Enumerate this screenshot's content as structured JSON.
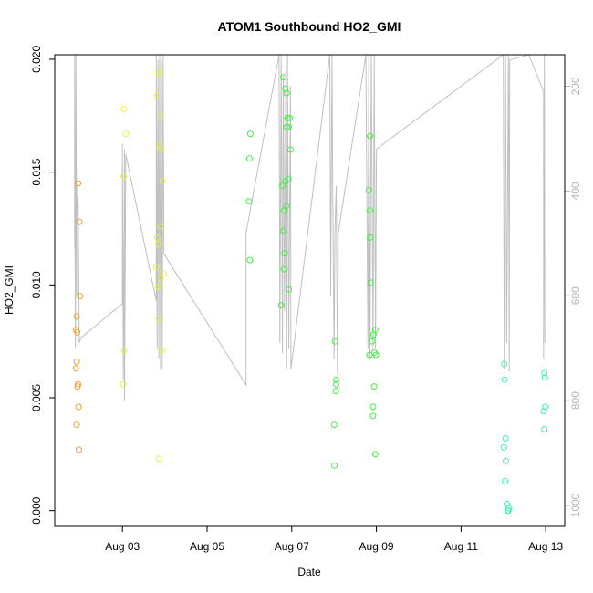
{
  "chart_data": {
    "type": "scatter",
    "title": "ATOM1 Southbound HO2_GMI",
    "xlabel": "Date",
    "ylabel": "HO2_GMI",
    "x_ticks": [
      "Aug 03",
      "Aug 05",
      "Aug 07",
      "Aug 09",
      "Aug 11",
      "Aug 13"
    ],
    "x_tick_days": [
      3,
      5,
      7,
      9,
      11,
      13
    ],
    "xlim": [
      1.4,
      13.45
    ],
    "ylim": [
      -0.0007,
      0.0202
    ],
    "y_ticks": [
      "0.000",
      "0.005",
      "0.010",
      "0.015",
      "0.020"
    ],
    "y_tick_values": [
      0,
      0.005,
      0.01,
      0.015,
      0.02
    ],
    "right_axis": {
      "label": "",
      "lim": [
        1040,
        140
      ],
      "ticks": [
        "200",
        "400",
        "600",
        "800",
        "1000"
      ],
      "tick_values": [
        200,
        400,
        600,
        800,
        1000
      ],
      "color": "#b4b4b4"
    },
    "colors": {
      "points_early": "#f0a030",
      "points_mid": "#e8f040",
      "points_green": "#40f040",
      "points_late": "#40f0b0",
      "trace": "#c0c0c0"
    },
    "series": [
      {
        "color": "#f0a030",
        "points": [
          [
            1.95,
            0.0145
          ],
          [
            1.98,
            0.0128
          ],
          [
            2.0,
            0.0095
          ],
          [
            1.92,
            0.0086
          ],
          [
            1.9,
            0.008
          ],
          [
            1.93,
            0.0079
          ],
          [
            1.92,
            0.0066
          ],
          [
            1.9,
            0.0063
          ],
          [
            1.95,
            0.0056
          ],
          [
            1.94,
            0.0055
          ],
          [
            1.96,
            0.0046
          ],
          [
            1.92,
            0.0038
          ],
          [
            1.97,
            0.0027
          ]
        ]
      },
      {
        "color": "#e8f040",
        "points": [
          [
            3.03,
            0.0178
          ],
          [
            3.08,
            0.0167
          ],
          [
            3.03,
            0.0148
          ],
          [
            3.04,
            0.0071
          ],
          [
            3.02,
            0.0056
          ],
          [
            3.85,
            0.0194
          ],
          [
            3.87,
            0.0194
          ],
          [
            3.83,
            0.0184
          ],
          [
            3.91,
            0.0175
          ],
          [
            3.88,
            0.0162
          ],
          [
            3.9,
            0.016
          ],
          [
            3.95,
            0.0146
          ],
          [
            3.9,
            0.0126
          ],
          [
            3.82,
            0.0121
          ],
          [
            3.85,
            0.0118
          ],
          [
            3.8,
            0.0108
          ],
          [
            3.97,
            0.0105
          ],
          [
            3.9,
            0.0103
          ],
          [
            3.85,
            0.0099
          ],
          [
            3.86,
            0.0085
          ],
          [
            3.93,
            0.0071
          ],
          [
            3.86,
            0.0023
          ]
        ]
      },
      {
        "color": "#40f040",
        "points": [
          [
            6.02,
            0.0167
          ],
          [
            6.0,
            0.0156
          ],
          [
            5.99,
            0.0137
          ],
          [
            6.01,
            0.0111
          ],
          [
            6.8,
            0.0192
          ],
          [
            6.85,
            0.0187
          ],
          [
            6.88,
            0.0185
          ],
          [
            6.9,
            0.0174
          ],
          [
            6.95,
            0.0174
          ],
          [
            6.93,
            0.017
          ],
          [
            6.88,
            0.017
          ],
          [
            6.97,
            0.016
          ],
          [
            6.92,
            0.0147
          ],
          [
            6.85,
            0.0146
          ],
          [
            6.78,
            0.0144
          ],
          [
            6.82,
            0.0133
          ],
          [
            6.88,
            0.0135
          ],
          [
            6.8,
            0.0124
          ],
          [
            6.83,
            0.0114
          ],
          [
            6.82,
            0.0107
          ],
          [
            6.93,
            0.0098
          ],
          [
            6.75,
            0.0091
          ],
          [
            8.02,
            0.0075
          ],
          [
            8.05,
            0.0058
          ],
          [
            8.05,
            0.0056
          ],
          [
            8.04,
            0.0053
          ],
          [
            8.0,
            0.0038
          ],
          [
            8.01,
            0.002
          ],
          [
            8.85,
            0.0166
          ],
          [
            8.82,
            0.0142
          ],
          [
            8.85,
            0.0133
          ],
          [
            8.85,
            0.0121
          ],
          [
            8.86,
            0.0101
          ],
          [
            8.97,
            0.008
          ],
          [
            8.93,
            0.0078
          ],
          [
            8.9,
            0.0075
          ],
          [
            8.95,
            0.007
          ],
          [
            8.84,
            0.0069
          ],
          [
            8.99,
            0.0069
          ],
          [
            8.95,
            0.0055
          ],
          [
            8.92,
            0.0046
          ],
          [
            8.92,
            0.0042
          ],
          [
            8.97,
            0.0025
          ]
        ]
      },
      {
        "color": "#40f0b0",
        "points": [
          [
            12.02,
            0.0065
          ],
          [
            12.03,
            0.0058
          ],
          [
            12.05,
            0.0032
          ],
          [
            12.01,
            0.0028
          ],
          [
            12.06,
            0.0022
          ],
          [
            12.04,
            0.0013
          ],
          [
            12.08,
            0.0003
          ],
          [
            12.1,
            0.0
          ],
          [
            12.12,
            0.0
          ],
          [
            12.13,
            0.0001
          ],
          [
            12.97,
            0.0061
          ],
          [
            12.98,
            0.0059
          ],
          [
            12.99,
            0.0046
          ],
          [
            12.95,
            0.0044
          ],
          [
            12.97,
            0.0036
          ]
        ]
      }
    ],
    "trace": {
      "points": [
        [
          1.87,
          170
        ],
        [
          1.87,
          510
        ],
        [
          1.87,
          140
        ],
        [
          1.88,
          520
        ],
        [
          1.89,
          700
        ],
        [
          1.9,
          140
        ],
        [
          1.92,
          600
        ],
        [
          1.92,
          460
        ],
        [
          1.95,
          380
        ],
        [
          1.98,
          690
        ],
        [
          2.02,
          680
        ],
        [
          3.0,
          615
        ],
        [
          3.0,
          310
        ],
        [
          3.02,
          760
        ],
        [
          3.05,
          320
        ],
        [
          3.05,
          800
        ],
        [
          3.08,
          330
        ],
        [
          3.8,
          610
        ],
        [
          3.8,
          140
        ],
        [
          3.82,
          700
        ],
        [
          3.84,
          150
        ],
        [
          3.86,
          720
        ],
        [
          3.88,
          140
        ],
        [
          3.9,
          740
        ],
        [
          3.92,
          150
        ],
        [
          3.94,
          740
        ],
        [
          3.96,
          140
        ],
        [
          3.98,
          520
        ],
        [
          5.92,
          770
        ],
        [
          5.92,
          480
        ],
        [
          6.7,
          140
        ],
        [
          6.72,
          690
        ],
        [
          6.75,
          140
        ],
        [
          6.78,
          710
        ],
        [
          6.8,
          180
        ],
        [
          6.83,
          630
        ],
        [
          6.86,
          170
        ],
        [
          6.88,
          740
        ],
        [
          6.9,
          140
        ],
        [
          6.93,
          700
        ],
        [
          6.97,
          200
        ],
        [
          6.98,
          740
        ],
        [
          7.9,
          140
        ],
        [
          7.92,
          600
        ],
        [
          7.95,
          140
        ],
        [
          7.97,
          410
        ],
        [
          8.0,
          720
        ],
        [
          8.02,
          480
        ],
        [
          8.05,
          390
        ],
        [
          8.08,
          750
        ],
        [
          8.1,
          480
        ],
        [
          8.75,
          140
        ],
        [
          8.8,
          700
        ],
        [
          8.82,
          140
        ],
        [
          8.85,
          720
        ],
        [
          8.88,
          140
        ],
        [
          8.92,
          700
        ],
        [
          8.95,
          140
        ],
        [
          8.98,
          700
        ],
        [
          9.0,
          320
        ],
        [
          12.0,
          140
        ],
        [
          12.02,
          740
        ],
        [
          12.05,
          140
        ],
        [
          12.08,
          690
        ],
        [
          12.12,
          140
        ],
        [
          12.14,
          745
        ],
        [
          12.15,
          150
        ],
        [
          12.6,
          140
        ],
        [
          12.95,
          210
        ],
        [
          12.95,
          720
        ],
        [
          12.97,
          140
        ],
        [
          12.98,
          690
        ]
      ]
    }
  }
}
